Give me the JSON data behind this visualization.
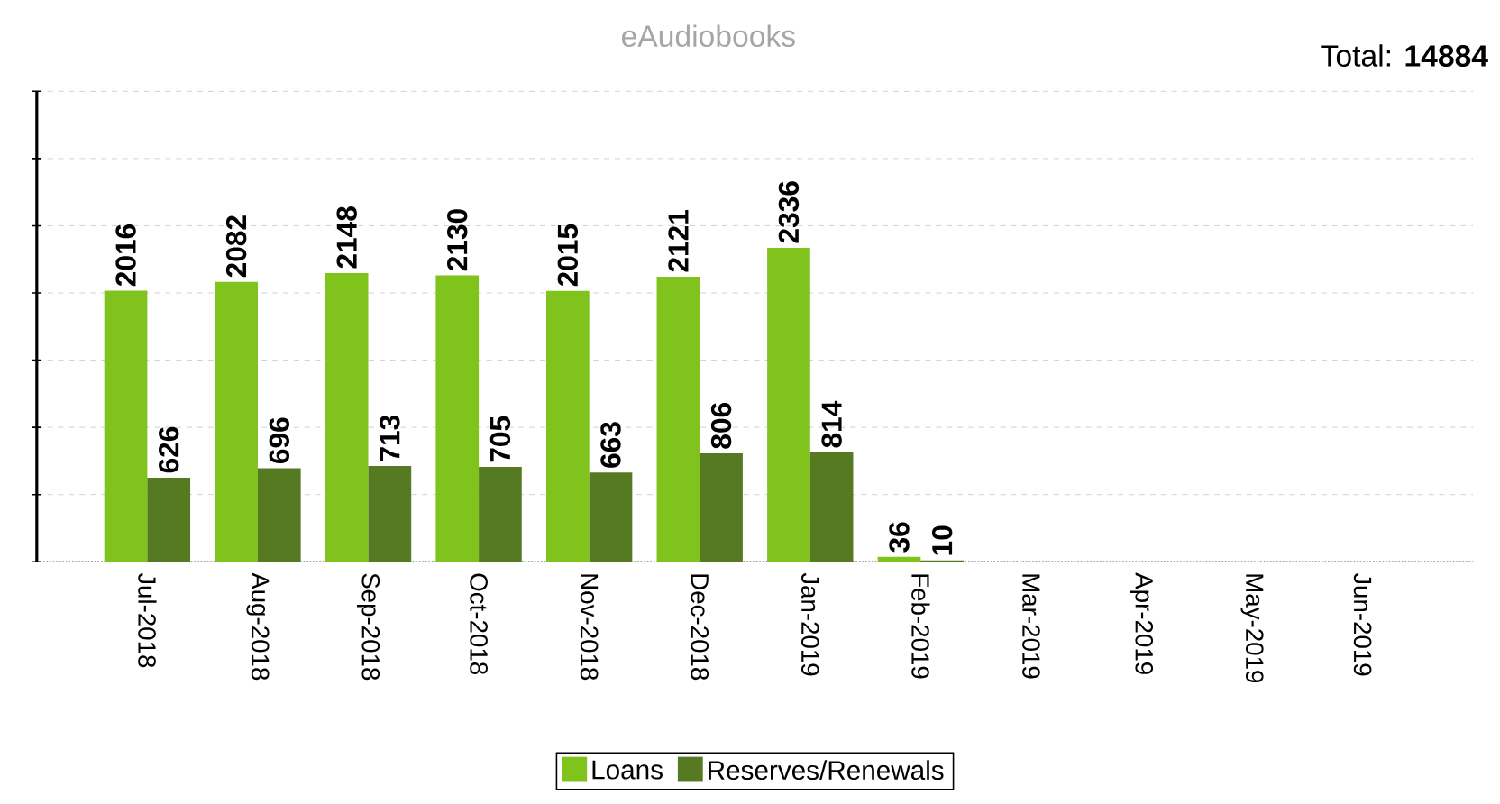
{
  "chart_data": {
    "type": "bar",
    "title": "eAudiobooks",
    "annotations": [
      "Total: **14884**"
    ],
    "categories": [
      "Jul-2018",
      "Aug-2018",
      "Sep-2018",
      "Oct-2018",
      "Nov-2018",
      "Dec-2018",
      "Jan-2019",
      "Feb-2019",
      "Mar-2019",
      "Apr-2019",
      "May-2019",
      "Jun-2019"
    ],
    "series": [
      {
        "name": "Loans",
        "color": "#80c31c",
        "values": [
          2016,
          2082,
          2148,
          2130,
          2015,
          2121,
          2336,
          36,
          null,
          null,
          null,
          null
        ]
      },
      {
        "name": "Reserves/Renewals",
        "color": "#567a22",
        "values": [
          626,
          696,
          713,
          705,
          663,
          806,
          814,
          10,
          null,
          null,
          null,
          null
        ]
      }
    ],
    "ylim": [
      0,
      3500
    ],
    "yticks": [
      {
        "value": 0,
        "label": null
      },
      {
        "value": 500,
        "label": null
      },
      {
        "value": 1000,
        "label": null
      },
      {
        "value": 1500,
        "label": null
      },
      {
        "value": 2000,
        "label": null
      },
      {
        "value": 2500,
        "label": null
      },
      {
        "value": 3000,
        "label": null
      },
      {
        "value": 3500,
        "label": null
      }
    ],
    "grid": "y",
    "legend": "bottom",
    "data_labels": true
  }
}
